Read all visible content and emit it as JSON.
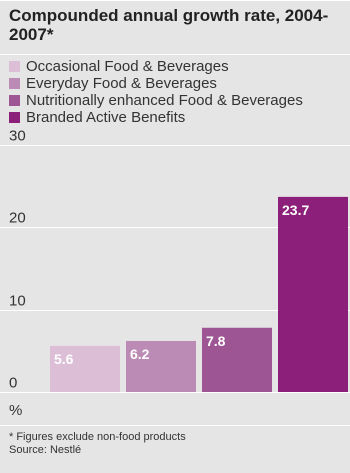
{
  "title": "Compounded annual growth rate, 2004-2007*",
  "legend": [
    {
      "label": "Occasional Food & Beverages",
      "color": "#dcbfd6"
    },
    {
      "label": "Everyday Food & Beverages",
      "color": "#bb8bb6"
    },
    {
      "label": "Nutritionally enhanced Food & Beverages",
      "color": "#9d5593"
    },
    {
      "label": "Branded Active Benefits",
      "color": "#8c1f79"
    }
  ],
  "chart_data": {
    "type": "bar",
    "categories": [
      "Occasional Food & Beverages",
      "Everyday Food & Beverages",
      "Nutritionally enhanced Food & Beverages",
      "Branded Active Benefits"
    ],
    "values": [
      5.6,
      6.2,
      7.8,
      23.7
    ],
    "data_labels": [
      "5.6",
      "6.2",
      "7.8",
      "23.7"
    ],
    "colors": [
      "#dcbfd6",
      "#bb8bb6",
      "#9d5593",
      "#8c1f79"
    ],
    "yticks": [
      0,
      10,
      20,
      30
    ],
    "ylim": [
      0,
      30
    ],
    "ylabel": "%",
    "grid": true
  },
  "footnote": "* Figures exclude non-food products",
  "source": "Source: Nestlé"
}
